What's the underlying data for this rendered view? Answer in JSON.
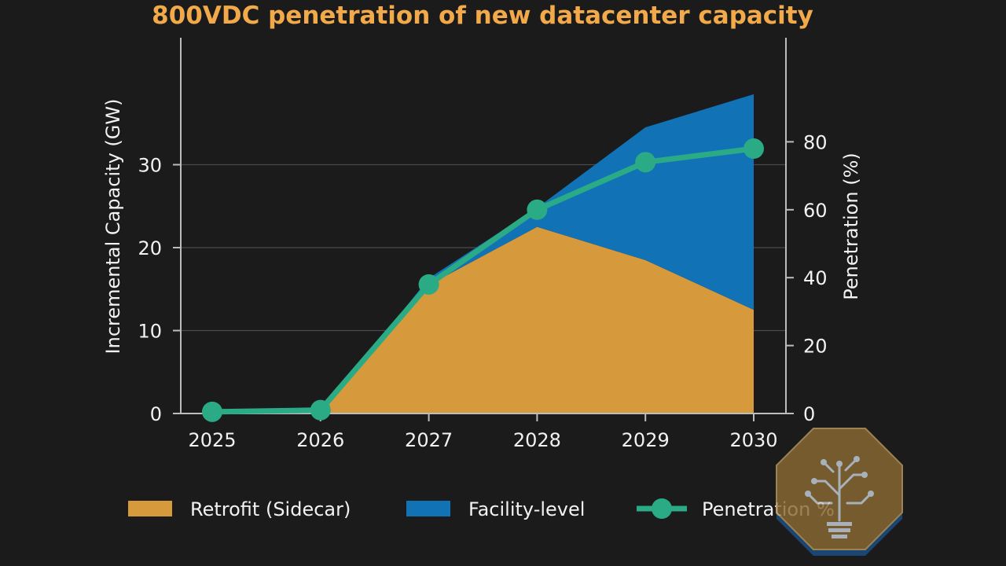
{
  "chart_data": {
    "type": "area",
    "title": "800VDC penetration of new datacenter capacity",
    "x": [
      "2025",
      "2026",
      "2027",
      "2028",
      "2029",
      "2030"
    ],
    "xlabel": "",
    "ylabel": "Incremental Capacity (GW)",
    "y2label": "Penetration (%)",
    "ylim": [
      0,
      45
    ],
    "y_ticks": [
      "0",
      "10",
      "20",
      "30"
    ],
    "y2lim": [
      0,
      80
    ],
    "y2_ticks": [
      "0",
      "20",
      "40",
      "60",
      "80"
    ],
    "grid": true,
    "legend_position": "bottom",
    "series": [
      {
        "name": "Retrofit (Sidecar)",
        "type": "area",
        "stacked": true,
        "axis": "left",
        "color": "#d69a3c",
        "values": [
          0,
          0,
          15.5,
          22.5,
          18.5,
          12.5
        ]
      },
      {
        "name": "Facility-level",
        "type": "area",
        "stacked": true,
        "axis": "left",
        "color": "#1172b6",
        "values": [
          0,
          0,
          0.8,
          2.3,
          16.0,
          26.0
        ]
      },
      {
        "name": "Penetration %",
        "type": "line",
        "axis": "right",
        "color": "#2aab86",
        "values": [
          0.5,
          1.0,
          38,
          60,
          74,
          78
        ]
      }
    ]
  },
  "colors": {
    "background": "#1b1b1b",
    "title": "#f2a94a",
    "text": "#f2f2f2",
    "axis": "#bdbdbd",
    "grid": "#4a4a4a"
  },
  "logo": {
    "icon": "circuit-tree-bulb-icon"
  }
}
